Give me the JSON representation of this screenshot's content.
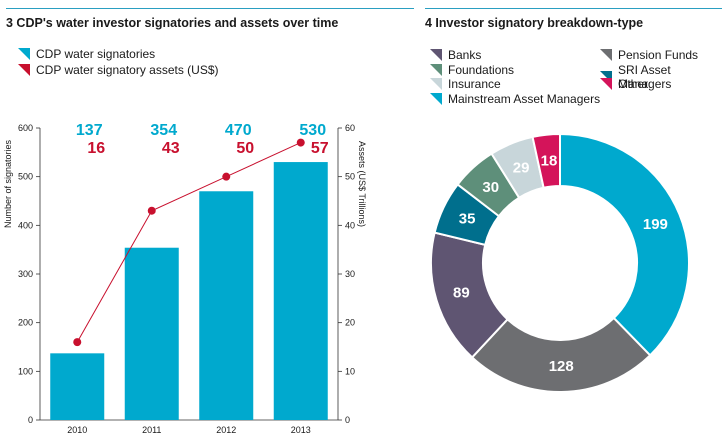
{
  "left_panel": {
    "title": "3  CDP's water investor signatories and assets over time",
    "legend": [
      {
        "label": "CDP water signatories",
        "color": "#00a9ce"
      },
      {
        "label": "CDP water signatory assets (US$)",
        "color": "#c8102e"
      }
    ]
  },
  "right_panel": {
    "title": "4 Investor signatory breakdown-type",
    "legend": [
      {
        "label": "Banks",
        "color": "#5f5572"
      },
      {
        "label": "Pension Funds",
        "color": "#6d6e71"
      },
      {
        "label": "Foundations",
        "color": "#5e8f7a"
      },
      {
        "label": "SRI Asset Managers",
        "color": "#006f8d"
      },
      {
        "label": "Insurance",
        "color": "#c8d6da"
      },
      {
        "label": "Other",
        "color": "#d4145a"
      },
      {
        "label": "Mainstream Asset Managers",
        "color": "#00a9ce"
      }
    ]
  },
  "chart_data": [
    {
      "type": "bar",
      "categories": [
        "2010",
        "2011",
        "2012",
        "2013"
      ],
      "series": [
        {
          "name": "CDP water signatories",
          "values": [
            137,
            354,
            470,
            530
          ],
          "color": "#00a9ce",
          "axis": "left"
        },
        {
          "name": "CDP water signatory assets (US$)",
          "values": [
            16,
            43,
            50,
            57
          ],
          "color": "#c8102e",
          "axis": "right",
          "render": "line"
        }
      ],
      "top_labels_blue": [
        "137",
        "354",
        "470",
        "530"
      ],
      "top_labels_red": [
        "16",
        "43",
        "50",
        "57"
      ],
      "ylabel": "Number of signatories",
      "y2label": "Assets (US$ Trillions)",
      "ylim": [
        0,
        600
      ],
      "y2lim": [
        0,
        60
      ],
      "yticks": [
        "0",
        "100",
        "200",
        "300",
        "400",
        "500",
        "600"
      ],
      "y2ticks": [
        "0",
        "10",
        "20",
        "30",
        "40",
        "50",
        "60"
      ]
    },
    {
      "type": "pie",
      "donut": true,
      "slices": [
        {
          "name": "Mainstream Asset Managers",
          "value": 199,
          "label": "199",
          "color": "#00a9ce"
        },
        {
          "name": "Pension Funds",
          "value": 128,
          "label": "128",
          "color": "#6d6e71"
        },
        {
          "name": "Banks",
          "value": 89,
          "label": "89",
          "color": "#5f5572"
        },
        {
          "name": "SRI Asset Managers",
          "value": 35,
          "label": "35",
          "color": "#006f8d"
        },
        {
          "name": "Foundations",
          "value": 30,
          "label": "30",
          "color": "#5e8f7a"
        },
        {
          "name": "Insurance",
          "value": 29,
          "label": "29",
          "color": "#c8d6da"
        },
        {
          "name": "Other",
          "value": 18,
          "label": "18",
          "color": "#d4145a"
        }
      ]
    }
  ]
}
